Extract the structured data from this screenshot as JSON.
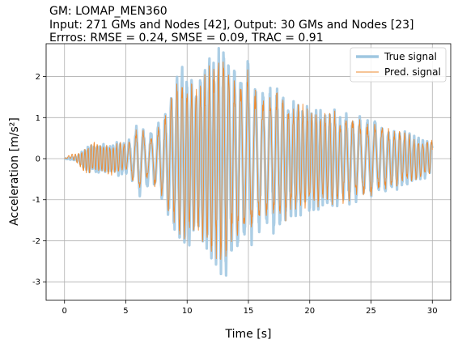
{
  "chart_data": {
    "type": "line",
    "title_lines": [
      "GM: LOMAP_MEN360",
      "Input: 271 GMs and Nodes [42], Output: 30 GMs and Nodes [23]",
      "Errros: RMSE = 0.24, SMSE = 0.09, TRAC = 0.91"
    ],
    "xlabel": "Time [s]",
    "ylabel": "Acceleration [m/s²]",
    "xlim": [
      -1.5,
      31.5
    ],
    "ylim": [
      -3.45,
      2.8
    ],
    "xticks": [
      0,
      5,
      10,
      15,
      20,
      25,
      30
    ],
    "yticks": [
      -3,
      -2,
      -1,
      0,
      1,
      2
    ],
    "grid": true,
    "legend_position": "top-right",
    "series": [
      {
        "name": "True signal",
        "color": "#9ec6e0",
        "style": "thick",
        "x": [
          0,
          1,
          1.5,
          2,
          2.5,
          3,
          3.5,
          4,
          4.5,
          5,
          5.5,
          6,
          6.5,
          7,
          7.5,
          8,
          8.5,
          9,
          9.5,
          10,
          10.5,
          11,
          11.5,
          12,
          12.5,
          13,
          13.5,
          14,
          14.5,
          15,
          15.5,
          16,
          16.5,
          17,
          17.5,
          18,
          18.5,
          19,
          19.5,
          20,
          20.5,
          21,
          21.5,
          22,
          22.5,
          23,
          23.5,
          24,
          24.5,
          25,
          25.5,
          26,
          26.5,
          27,
          27.5,
          28,
          28.5,
          29,
          29.5,
          30
        ],
        "amplitude": [
          0,
          0.05,
          0.2,
          0.3,
          0.35,
          0.35,
          0.3,
          0.35,
          0.4,
          0.35,
          0.5,
          0.9,
          0.7,
          0.6,
          0.8,
          1.0,
          1.4,
          1.8,
          2.1,
          2.0,
          1.8,
          2.0,
          2.2,
          2.4,
          2.6,
          2.8,
          2.3,
          2.0,
          2.1,
          2.2,
          1.8,
          1.6,
          1.5,
          1.7,
          1.6,
          1.5,
          1.3,
          1.4,
          1.3,
          1.2,
          1.3,
          1.1,
          1.1,
          1.2,
          1.0,
          1.1,
          1.0,
          0.95,
          0.9,
          0.95,
          0.85,
          0.8,
          0.75,
          0.7,
          0.65,
          0.6,
          0.55,
          0.5,
          0.45,
          0.4
        ]
      },
      {
        "name": "Pred. signal",
        "color": "#ee8a2f",
        "style": "thin",
        "x": [
          0,
          1,
          1.5,
          2,
          2.5,
          3,
          3.5,
          4,
          4.5,
          5,
          5.5,
          6,
          6.5,
          7,
          7.5,
          8,
          8.5,
          9,
          9.5,
          10,
          10.5,
          11,
          11.5,
          12,
          12.5,
          13,
          13.5,
          14,
          14.5,
          15,
          15.5,
          16,
          16.5,
          17,
          17.5,
          18,
          18.5,
          19,
          19.5,
          20,
          20.5,
          21,
          21.5,
          22,
          22.5,
          23,
          23.5,
          24,
          24.5,
          25,
          25.5,
          26,
          26.5,
          27,
          27.5,
          28,
          28.5,
          29,
          29.5,
          30
        ],
        "amplitude": [
          0,
          0.1,
          0.25,
          0.35,
          0.35,
          0.35,
          0.35,
          0.35,
          0.35,
          0.3,
          0.45,
          0.8,
          0.6,
          0.5,
          0.7,
          0.9,
          1.2,
          1.6,
          1.9,
          1.9,
          1.7,
          1.8,
          2.0,
          2.2,
          2.3,
          2.5,
          2.0,
          1.8,
          1.9,
          2.0,
          1.6,
          1.5,
          1.4,
          1.5,
          1.5,
          1.4,
          1.2,
          1.3,
          1.2,
          1.1,
          1.2,
          1.0,
          1.0,
          1.1,
          0.95,
          1.0,
          0.95,
          0.9,
          0.85,
          0.85,
          0.8,
          0.75,
          0.7,
          0.65,
          0.6,
          0.55,
          0.5,
          0.45,
          0.42,
          0.38
        ]
      }
    ]
  }
}
